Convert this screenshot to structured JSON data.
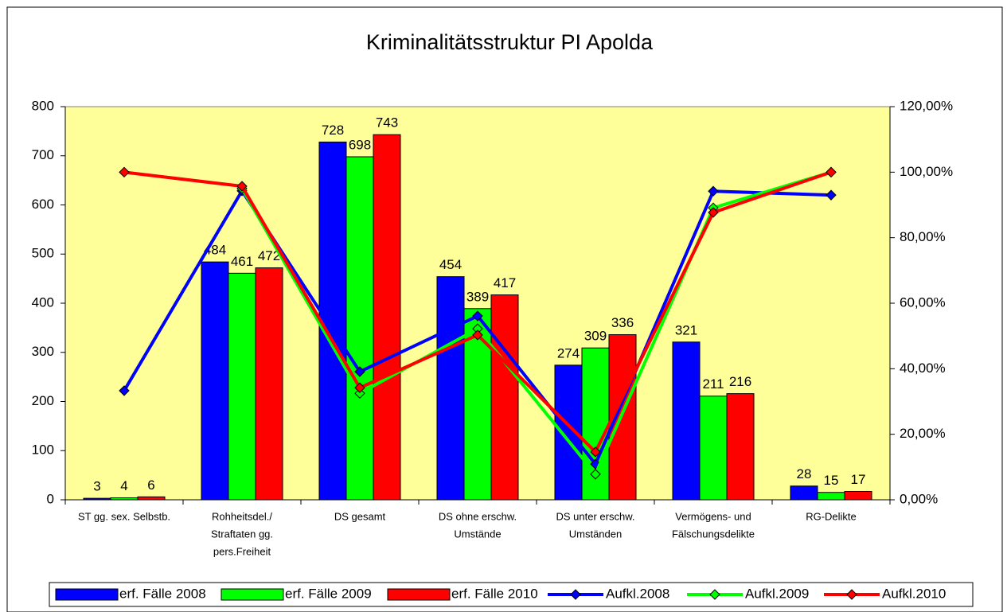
{
  "chart_data": {
    "type": "bar",
    "title": "Kriminalitätsstruktur PI Apolda",
    "categories": [
      [
        "ST gg. sex. Selbstb."
      ],
      [
        "Rohheitsdel./",
        "Straftaten gg.",
        "pers.Freiheit"
      ],
      [
        "DS gesamt"
      ],
      [
        "DS ohne erschw.",
        "Umstände"
      ],
      [
        "DS unter erschw.",
        "Umständen"
      ],
      [
        "Vermögens- und",
        "Fälschungsdelikte"
      ],
      [
        "RG-Delikte"
      ]
    ],
    "series": [
      {
        "name": "erf. Fälle 2008",
        "type": "bar",
        "color": "#0000ff",
        "values": [
          3,
          484,
          728,
          454,
          274,
          321,
          28
        ]
      },
      {
        "name": "erf. Fälle 2009",
        "type": "bar",
        "color": "#00ff00",
        "values": [
          4,
          461,
          698,
          389,
          309,
          211,
          15
        ]
      },
      {
        "name": "erf. Fälle 2010",
        "type": "bar",
        "color": "#ff0000",
        "values": [
          6,
          472,
          743,
          417,
          336,
          216,
          17
        ]
      },
      {
        "name": "Aufkl.2008",
        "type": "line",
        "axis": "y2",
        "color": "#0000ff",
        "values": [
          33.3,
          94.3,
          39.1,
          56.1,
          10.9,
          94.2,
          93.0
        ]
      },
      {
        "name": "Aufkl.2009",
        "type": "line",
        "axis": "y2",
        "color": "#00ff00",
        "values": [
          null,
          95.0,
          32.5,
          52.2,
          7.8,
          89.1,
          100
        ]
      },
      {
        "name": "Aufkl.2010",
        "type": "line",
        "axis": "y2",
        "color": "#ff0000",
        "values": [
          100,
          95.7,
          34.2,
          50.3,
          14.6,
          87.7,
          100
        ]
      }
    ],
    "ylim": [
      0,
      800
    ],
    "yticks": [
      0,
      100,
      200,
      300,
      400,
      500,
      600,
      700,
      800
    ],
    "y2lim": [
      0,
      120
    ],
    "y2ticks": [
      {
        "value": 0,
        "label": "0,00%"
      },
      {
        "value": 20,
        "label": "20,00%"
      },
      {
        "value": 40,
        "label": "40,00%"
      },
      {
        "value": 60,
        "label": "60,00%"
      },
      {
        "value": 80,
        "label": "80,00%"
      },
      {
        "value": 100,
        "label": "100,00%"
      },
      {
        "value": 120,
        "label": "120,00%"
      }
    ],
    "plot_background": "#ffff99"
  }
}
